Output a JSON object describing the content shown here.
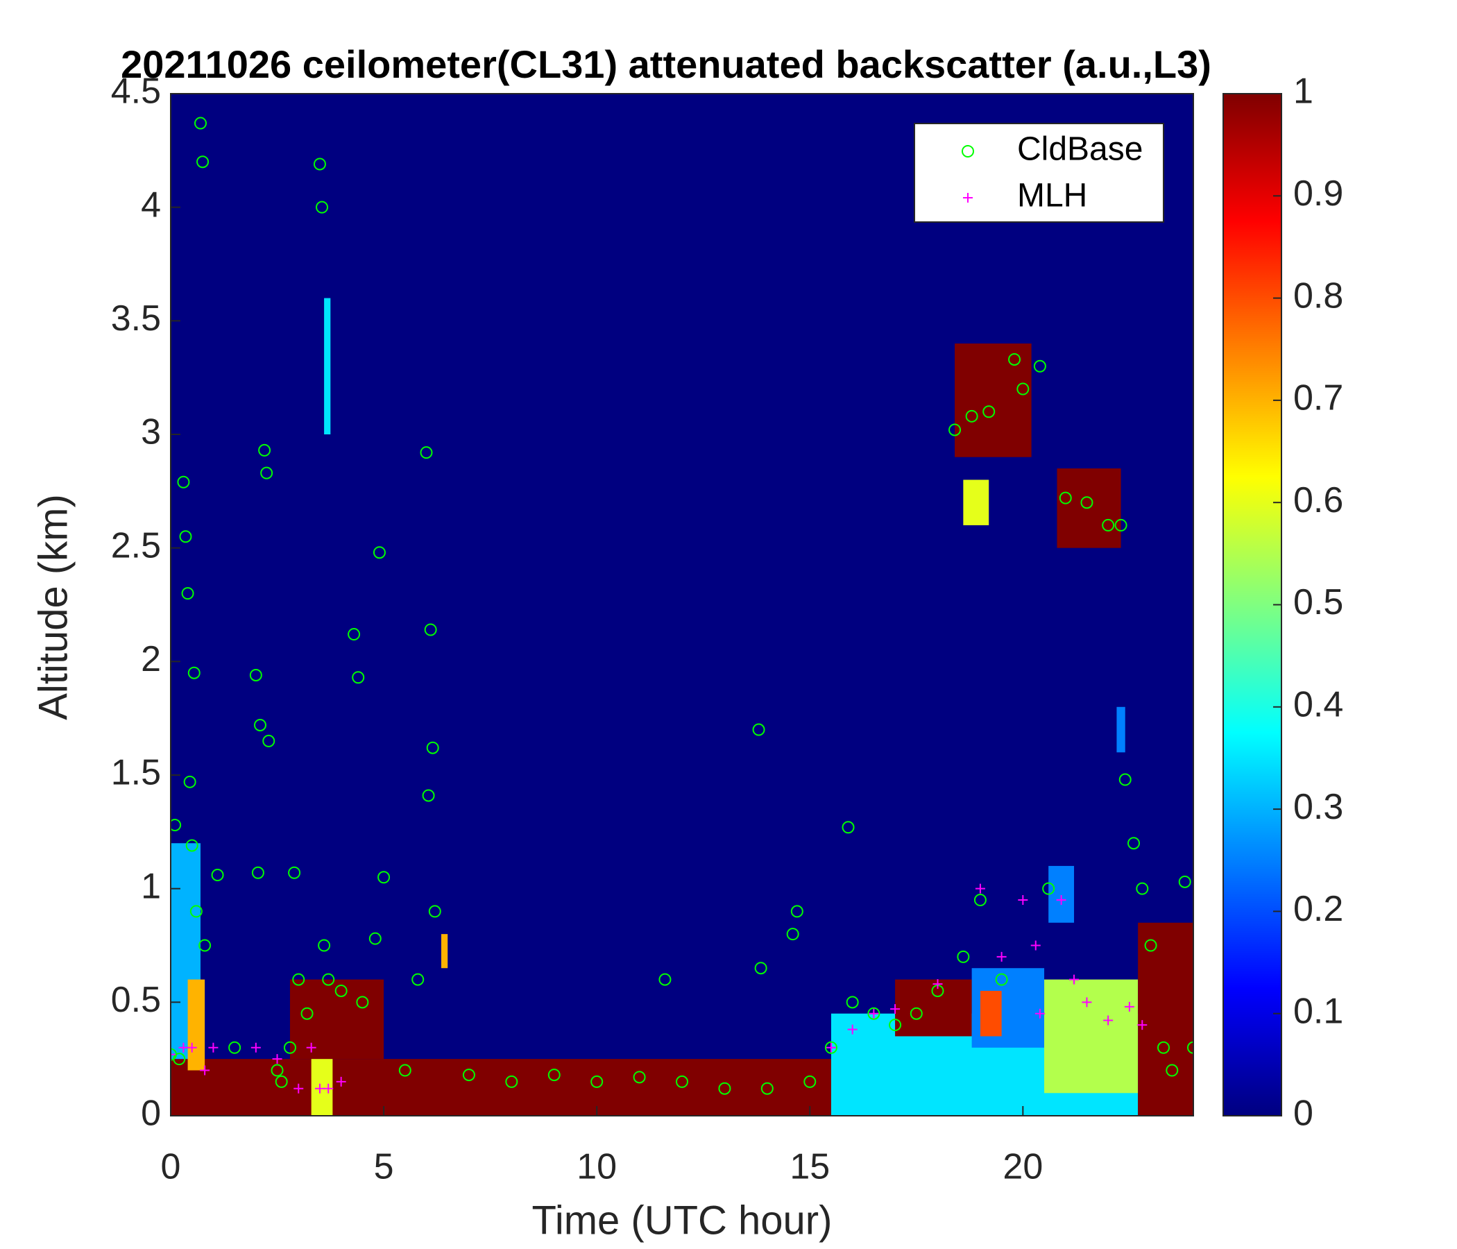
{
  "chart_data": {
    "type": "heatmap",
    "title": "20211026 ceilometer(CL31) attenuated backscatter (a.u.,L3)",
    "xlabel": "Time (UTC hour)",
    "ylabel": "Altitude (km)",
    "xlim": [
      0,
      24
    ],
    "ylim": [
      0,
      4.5
    ],
    "xticks": [
      0,
      5,
      10,
      15,
      20
    ],
    "yticks": [
      0,
      0.5,
      1,
      1.5,
      2,
      2.5,
      3,
      3.5,
      4,
      4.5
    ],
    "colormap": "jet",
    "clim": [
      0,
      1
    ],
    "cticks": [
      0,
      0.1,
      0.2,
      0.3,
      0.4,
      0.5,
      0.6,
      0.7,
      0.8,
      0.9,
      1
    ],
    "background_value": 0,
    "cells": [
      [
        0,
        15.5,
        0,
        0.25,
        1
      ],
      [
        0,
        0.7,
        0.25,
        1.2,
        0.3
      ],
      [
        0.4,
        0.8,
        0.2,
        0.6,
        0.7
      ],
      [
        2.8,
        5,
        0.25,
        0.6,
        1
      ],
      [
        3.3,
        3.8,
        0,
        0.25,
        0.6
      ],
      [
        3.6,
        3.75,
        3.0,
        3.6,
        0.35
      ],
      [
        15.5,
        22.7,
        0,
        0.45,
        0.35
      ],
      [
        17,
        18.8,
        0.35,
        0.6,
        1
      ],
      [
        18.8,
        20.5,
        0.3,
        0.65,
        0.25
      ],
      [
        19,
        19.5,
        0.35,
        0.55,
        0.8
      ],
      [
        20.5,
        22.7,
        0.1,
        0.6,
        0.55
      ],
      [
        22.7,
        24,
        0,
        0.85,
        1
      ],
      [
        18.4,
        20.2,
        2.9,
        3.4,
        1
      ],
      [
        18.6,
        19.2,
        2.6,
        2.8,
        0.6
      ],
      [
        20.8,
        22.3,
        2.5,
        2.85,
        1
      ],
      [
        20.6,
        21.2,
        0.85,
        1.1,
        0.25
      ],
      [
        22.2,
        22.4,
        1.6,
        1.8,
        0.25
      ],
      [
        6.35,
        6.5,
        0.65,
        0.8,
        0.7
      ]
    ],
    "legend": "northeast",
    "series": [
      {
        "name": "CldBase",
        "color": "#00ff00",
        "marker": "o",
        "x": [
          0,
          0.1,
          0.2,
          0.3,
          0.35,
          0.4,
          0.45,
          0.5,
          0.55,
          0.6,
          0.7,
          0.75,
          0.8,
          1.1,
          1.5,
          2,
          2.05,
          2.1,
          2.2,
          2.25,
          2.3,
          2.5,
          2.6,
          2.8,
          2.9,
          3,
          3.2,
          3.5,
          3.55,
          3.6,
          3.7,
          4,
          4.3,
          4.4,
          4.5,
          4.8,
          4.9,
          5,
          5.5,
          5.8,
          6,
          6.05,
          6.1,
          6.15,
          6.2,
          7,
          8,
          9,
          10,
          11,
          11.6,
          12,
          13,
          13.8,
          13.85,
          14,
          14.6,
          14.7,
          15,
          15.5,
          15.9,
          16,
          16.5,
          17,
          17.5,
          18,
          18.4,
          18.6,
          18.8,
          19,
          19.2,
          19.5,
          19.8,
          20,
          20.4,
          20.6,
          21,
          21.5,
          22,
          22.3,
          22.4,
          22.6,
          22.8,
          23,
          23.3,
          23.5,
          23.8,
          24
        ],
        "values": [
          0.27,
          1.28,
          0.25,
          2.79,
          2.55,
          2.3,
          1.47,
          1.19,
          1.95,
          0.9,
          4.37,
          4.2,
          0.75,
          1.06,
          0.3,
          1.94,
          1.07,
          1.72,
          2.93,
          2.83,
          1.65,
          0.2,
          0.15,
          0.3,
          1.07,
          0.6,
          0.45,
          4.19,
          4.0,
          0.75,
          0.6,
          0.55,
          2.12,
          1.93,
          0.5,
          0.78,
          2.48,
          1.05,
          0.2,
          0.6,
          2.92,
          1.41,
          2.14,
          1.62,
          0.9,
          0.18,
          0.15,
          0.18,
          0.15,
          0.17,
          0.6,
          0.15,
          0.12,
          1.7,
          0.65,
          0.12,
          0.8,
          0.9,
          0.15,
          0.3,
          1.27,
          0.5,
          0.45,
          0.4,
          0.45,
          0.55,
          3.02,
          0.7,
          3.08,
          0.95,
          3.1,
          0.6,
          3.33,
          3.2,
          3.3,
          1.0,
          2.72,
          2.7,
          2.6,
          2.6,
          1.48,
          1.2,
          1.0,
          0.75,
          0.3,
          0.2,
          1.03,
          0.3
        ]
      },
      {
        "name": "MLH",
        "color": "#ff00ff",
        "marker": "+",
        "x": [
          0,
          0.3,
          0.5,
          0.8,
          1,
          2,
          2.5,
          3,
          3.3,
          3.5,
          3.7,
          4,
          15.5,
          16,
          16.5,
          17,
          18,
          19,
          19.5,
          20,
          20.3,
          20.4,
          20.9,
          21.2,
          21.5,
          22,
          22.5,
          22.8
        ],
        "values": [
          0.27,
          0.3,
          0.3,
          0.2,
          0.3,
          0.3,
          0.25,
          0.12,
          0.3,
          0.12,
          0.12,
          0.15,
          0.3,
          0.38,
          0.45,
          0.47,
          0.58,
          1.0,
          0.7,
          0.95,
          0.75,
          0.45,
          0.95,
          0.6,
          0.5,
          0.42,
          0.48,
          0.4
        ]
      }
    ]
  }
}
